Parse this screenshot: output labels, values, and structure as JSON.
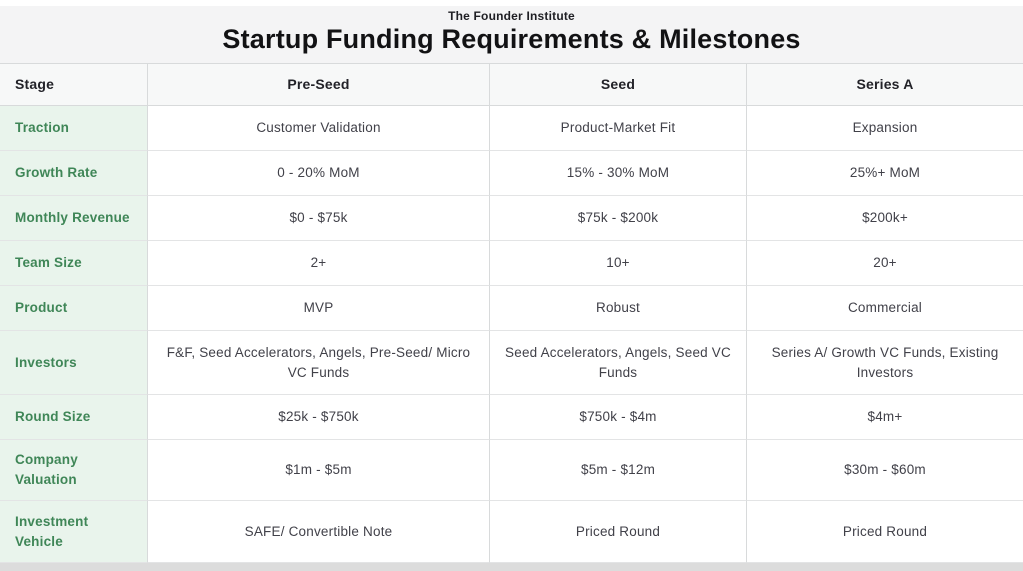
{
  "header": {
    "subtitle": "The Founder Institute",
    "title": "Startup Funding Requirements & Milestones"
  },
  "chart_data": {
    "type": "table",
    "title": "Startup Funding Requirements & Milestones",
    "subtitle": "The Founder Institute",
    "columns": [
      "Stage",
      "Pre-Seed",
      "Seed",
      "Series A"
    ],
    "rows": [
      {
        "label": "Traction",
        "values": [
          "Customer Validation",
          "Product-Market Fit",
          "Expansion"
        ]
      },
      {
        "label": "Growth Rate",
        "values": [
          "0 - 20% MoM",
          "15% - 30% MoM",
          "25%+ MoM"
        ]
      },
      {
        "label": "Monthly Revenue",
        "values": [
          "$0 - $75k",
          "$75k - $200k",
          "$200k+"
        ]
      },
      {
        "label": "Team Size",
        "values": [
          "2+",
          "10+",
          "20+"
        ]
      },
      {
        "label": "Product",
        "values": [
          "MVP",
          "Robust",
          "Commercial"
        ]
      },
      {
        "label": "Investors",
        "values": [
          "F&F, Seed Accelerators, Angels, Pre-Seed/ Micro VC Funds",
          "Seed Accelerators, Angels, Seed VC Funds",
          "Series A/ Growth VC Funds, Existing Investors"
        ]
      },
      {
        "label": "Round Size",
        "values": [
          "$25k - $750k",
          "$750k - $4m",
          "$4m+"
        ]
      },
      {
        "label": "Company Valuation",
        "values": [
          "$1m - $5m",
          "$5m - $12m",
          "$30m - $60m"
        ]
      },
      {
        "label": "Investment Vehicle",
        "values": [
          "SAFE/ Convertible Note",
          "Priced Round",
          "Priced Round"
        ]
      }
    ]
  },
  "colors": {
    "title_band_bg": "#f4f4f5",
    "table_bg": "#ffffff",
    "header_row_bg": "#f7f8f8",
    "label_column_bg": "#e9f4ec",
    "label_text": "#3f8657",
    "body_text": "#414149",
    "heading_text": "#121214",
    "border": "#d8dadb",
    "bottom_strip": "#dcdcdc"
  }
}
